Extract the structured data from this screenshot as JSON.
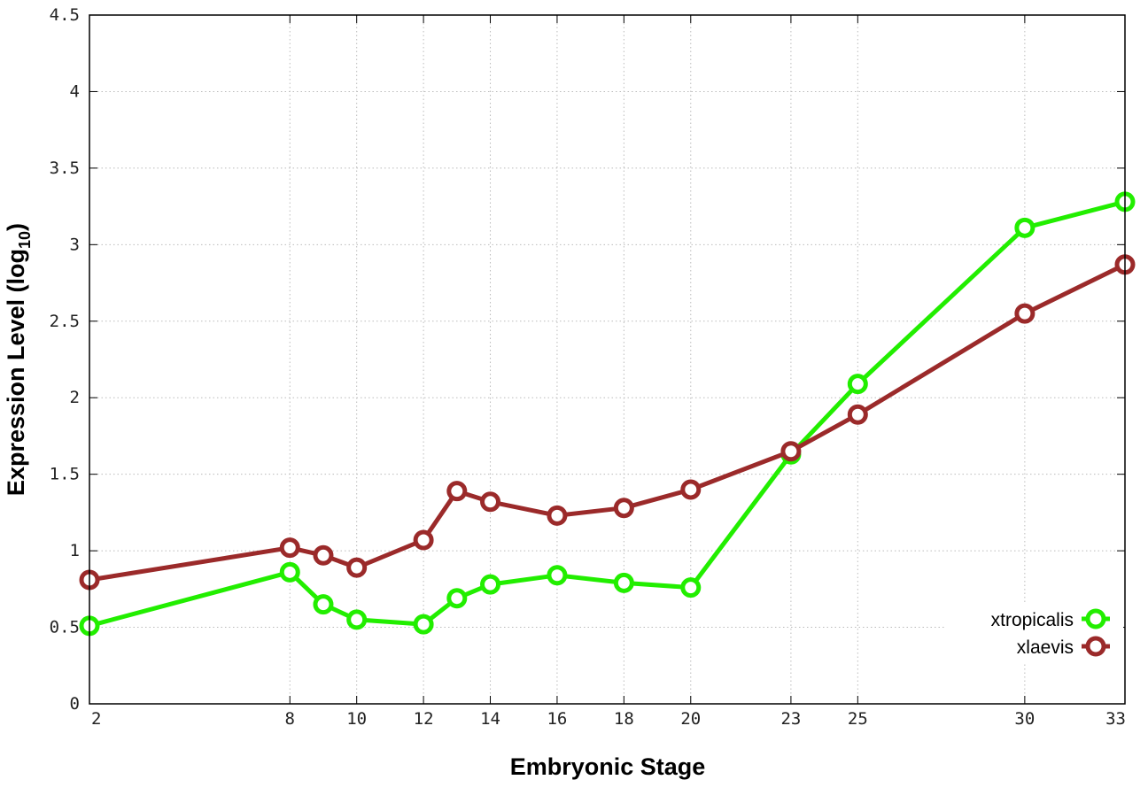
{
  "chart_data": {
    "type": "line",
    "xlabel": "Embryonic Stage",
    "ylabel": "Expression Level (log",
    "ylabel_subscript": "10",
    "ylabel_suffix": ")",
    "xlim": [
      2,
      33
    ],
    "ylim": [
      0,
      4.5
    ],
    "x_ticks": [
      2,
      8,
      10,
      12,
      14,
      16,
      18,
      20,
      23,
      25,
      30,
      33
    ],
    "y_ticks": [
      0,
      0.5,
      1,
      1.5,
      2,
      2.5,
      3,
      3.5,
      4,
      4.5
    ],
    "y_tick_labels": [
      "0",
      "0.5",
      "1",
      "1.5",
      "2",
      "2.5",
      "3",
      "3.5",
      "4",
      "4.5"
    ],
    "grid": true,
    "legend_position": "bottom-right",
    "series": [
      {
        "name": "xtropicalis",
        "color": "#22ee00",
        "x": [
          2,
          8,
          9,
          10,
          12,
          13,
          14,
          16,
          18,
          20,
          23,
          25,
          30,
          33
        ],
        "y": [
          0.51,
          0.86,
          0.65,
          0.55,
          0.52,
          0.69,
          0.78,
          0.84,
          0.79,
          0.76,
          1.63,
          2.09,
          3.11,
          3.28
        ]
      },
      {
        "name": "xlaevis",
        "color": "#9b2a2a",
        "x": [
          2,
          8,
          9,
          10,
          12,
          13,
          14,
          16,
          18,
          20,
          23,
          25,
          30,
          33
        ],
        "y": [
          0.81,
          1.02,
          0.97,
          0.89,
          1.07,
          1.39,
          1.32,
          1.23,
          1.28,
          1.4,
          1.65,
          1.89,
          2.55,
          2.87
        ]
      }
    ]
  }
}
